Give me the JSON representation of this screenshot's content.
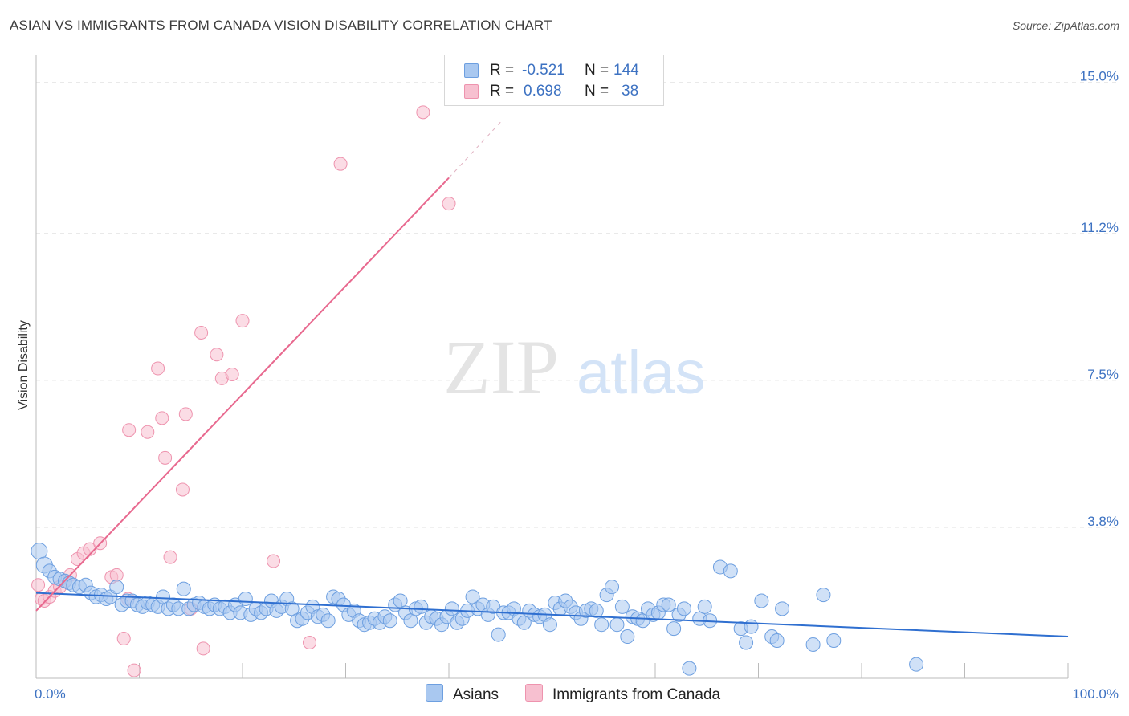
{
  "title": "ASIAN VS IMMIGRANTS FROM CANADA VISION DISABILITY CORRELATION CHART",
  "source": "Source: ZipAtlas.com",
  "watermark": {
    "zip": "ZIP",
    "atlas": "atlas"
  },
  "legend": {
    "series1": {
      "r_label": "R =",
      "r_value": "-0.521",
      "n_label": "N =",
      "n_value": "144"
    },
    "series2": {
      "r_label": "R =",
      "r_value": "0.698",
      "n_label": "N =",
      "n_value": "38"
    }
  },
  "bottom_legend": {
    "series1": "Asians",
    "series2": "Immigrants from Canada"
  },
  "colors": {
    "asians_fill": "#a9c8f0",
    "asians_stroke": "#6d9fe0",
    "asians_line": "#2f6fd0",
    "canada_fill": "#f7c0d0",
    "canada_stroke": "#ee93ae",
    "canada_line": "#e8698f",
    "tick_text": "#3d72c2",
    "grid": "#e2e2e2"
  },
  "chart_data": {
    "type": "scatter",
    "title": "ASIAN VS IMMIGRANTS FROM CANADA VISION DISABILITY CORRELATION CHART",
    "xlabel": "",
    "ylabel": "Vision Disability",
    "xlim": [
      0,
      100
    ],
    "ylim": [
      0,
      15.5
    ],
    "x_tick_labels": [
      "0.0%",
      "100.0%"
    ],
    "y_ticks": [
      3.8,
      7.5,
      11.2,
      15.0
    ],
    "y_tick_labels": [
      "3.8%",
      "7.5%",
      "11.2%",
      "15.0%"
    ],
    "grid": true,
    "series": [
      {
        "name": "Asians",
        "r": -0.521,
        "n": 144,
        "trend": {
          "x": [
            0,
            100
          ],
          "y": [
            2.15,
            1.05
          ]
        },
        "points": [
          [
            0.3,
            3.2
          ],
          [
            0.8,
            2.85
          ],
          [
            1.3,
            2.7
          ],
          [
            1.8,
            2.55
          ],
          [
            2.3,
            2.5
          ],
          [
            2.8,
            2.45
          ],
          [
            3.2,
            2.4
          ],
          [
            3.6,
            2.35
          ],
          [
            4.2,
            2.3
          ],
          [
            4.8,
            2.35
          ],
          [
            5.3,
            2.15
          ],
          [
            5.8,
            2.05
          ],
          [
            6.3,
            2.1
          ],
          [
            6.8,
            2.0
          ],
          [
            7.2,
            2.05
          ],
          [
            7.8,
            2.3
          ],
          [
            8.3,
            1.85
          ],
          [
            8.8,
            1.95
          ],
          [
            9.3,
            1.95
          ],
          [
            9.8,
            1.85
          ],
          [
            10.3,
            1.8
          ],
          [
            10.8,
            1.9
          ],
          [
            11.3,
            1.85
          ],
          [
            11.8,
            1.8
          ],
          [
            12.3,
            2.05
          ],
          [
            12.8,
            1.75
          ],
          [
            13.3,
            1.85
          ],
          [
            13.8,
            1.75
          ],
          [
            14.3,
            2.25
          ],
          [
            14.8,
            1.75
          ],
          [
            15.3,
            1.85
          ],
          [
            15.8,
            1.9
          ],
          [
            16.3,
            1.8
          ],
          [
            16.8,
            1.75
          ],
          [
            17.3,
            1.85
          ],
          [
            17.8,
            1.75
          ],
          [
            18.3,
            1.8
          ],
          [
            18.8,
            1.65
          ],
          [
            19.3,
            1.85
          ],
          [
            19.8,
            1.65
          ],
          [
            20.3,
            2.0
          ],
          [
            20.8,
            1.6
          ],
          [
            21.3,
            1.75
          ],
          [
            21.8,
            1.65
          ],
          [
            22.3,
            1.75
          ],
          [
            22.8,
            1.95
          ],
          [
            23.3,
            1.7
          ],
          [
            23.8,
            1.8
          ],
          [
            24.3,
            2.0
          ],
          [
            24.8,
            1.75
          ],
          [
            25.3,
            1.45
          ],
          [
            25.8,
            1.5
          ],
          [
            26.3,
            1.65
          ],
          [
            26.8,
            1.8
          ],
          [
            27.3,
            1.55
          ],
          [
            27.8,
            1.6
          ],
          [
            28.3,
            1.45
          ],
          [
            28.8,
            2.05
          ],
          [
            29.3,
            2.0
          ],
          [
            29.8,
            1.85
          ],
          [
            30.3,
            1.6
          ],
          [
            30.8,
            1.7
          ],
          [
            31.3,
            1.45
          ],
          [
            31.8,
            1.35
          ],
          [
            32.3,
            1.4
          ],
          [
            32.8,
            1.5
          ],
          [
            33.3,
            1.4
          ],
          [
            33.8,
            1.55
          ],
          [
            34.3,
            1.45
          ],
          [
            34.8,
            1.85
          ],
          [
            35.3,
            1.95
          ],
          [
            35.8,
            1.65
          ],
          [
            36.3,
            1.45
          ],
          [
            36.8,
            1.75
          ],
          [
            37.3,
            1.8
          ],
          [
            37.8,
            1.4
          ],
          [
            38.3,
            1.55
          ],
          [
            38.8,
            1.5
          ],
          [
            39.3,
            1.35
          ],
          [
            39.8,
            1.55
          ],
          [
            40.3,
            1.75
          ],
          [
            40.8,
            1.4
          ],
          [
            41.3,
            1.5
          ],
          [
            41.8,
            1.7
          ],
          [
            42.3,
            2.05
          ],
          [
            42.8,
            1.75
          ],
          [
            43.3,
            1.85
          ],
          [
            43.8,
            1.6
          ],
          [
            44.3,
            1.8
          ],
          [
            44.8,
            1.1
          ],
          [
            45.3,
            1.65
          ],
          [
            45.8,
            1.65
          ],
          [
            46.3,
            1.75
          ],
          [
            46.8,
            1.5
          ],
          [
            47.3,
            1.4
          ],
          [
            47.8,
            1.7
          ],
          [
            48.3,
            1.6
          ],
          [
            48.8,
            1.55
          ],
          [
            49.3,
            1.6
          ],
          [
            49.8,
            1.35
          ],
          [
            50.3,
            1.9
          ],
          [
            50.8,
            1.75
          ],
          [
            51.3,
            1.95
          ],
          [
            51.8,
            1.8
          ],
          [
            52.3,
            1.65
          ],
          [
            52.8,
            1.5
          ],
          [
            53.3,
            1.7
          ],
          [
            53.8,
            1.75
          ],
          [
            54.3,
            1.7
          ],
          [
            54.8,
            1.35
          ],
          [
            55.3,
            2.1
          ],
          [
            55.8,
            2.3
          ],
          [
            56.3,
            1.35
          ],
          [
            56.8,
            1.8
          ],
          [
            57.3,
            1.05
          ],
          [
            57.8,
            1.55
          ],
          [
            58.3,
            1.5
          ],
          [
            58.8,
            1.45
          ],
          [
            59.3,
            1.75
          ],
          [
            59.8,
            1.6
          ],
          [
            60.3,
            1.65
          ],
          [
            60.8,
            1.85
          ],
          [
            61.3,
            1.85
          ],
          [
            61.8,
            1.25
          ],
          [
            62.3,
            1.6
          ],
          [
            62.8,
            1.75
          ],
          [
            63.3,
            0.25
          ],
          [
            64.3,
            1.5
          ],
          [
            64.8,
            1.8
          ],
          [
            65.3,
            1.45
          ],
          [
            66.3,
            2.8
          ],
          [
            67.3,
            2.7
          ],
          [
            68.3,
            1.25
          ],
          [
            68.8,
            0.9
          ],
          [
            69.3,
            1.3
          ],
          [
            70.3,
            1.95
          ],
          [
            71.3,
            1.05
          ],
          [
            71.8,
            0.95
          ],
          [
            72.3,
            1.75
          ],
          [
            75.3,
            0.85
          ],
          [
            76.3,
            2.1
          ],
          [
            77.3,
            0.95
          ],
          [
            85.3,
            0.35
          ]
        ]
      },
      {
        "name": "Immigrants from Canada",
        "r": 0.698,
        "n": 38,
        "trend": {
          "x": [
            0,
            40
          ],
          "y": [
            1.7,
            12.6
          ],
          "dashed_extension": {
            "x": [
              40,
              45
            ],
            "y": [
              12.6,
              14.0
            ]
          }
        },
        "points": [
          [
            0.2,
            2.35
          ],
          [
            0.5,
            2.0
          ],
          [
            0.8,
            1.95
          ],
          [
            1.3,
            2.05
          ],
          [
            1.8,
            2.2
          ],
          [
            2.3,
            2.3
          ],
          [
            2.8,
            2.45
          ],
          [
            3.3,
            2.6
          ],
          [
            4.0,
            3.0
          ],
          [
            4.6,
            3.15
          ],
          [
            5.2,
            3.25
          ],
          [
            6.2,
            3.4
          ],
          [
            7.3,
            2.55
          ],
          [
            7.8,
            2.6
          ],
          [
            8.5,
            1.0
          ],
          [
            8.9,
            2.0
          ],
          [
            9.0,
            6.25
          ],
          [
            9.5,
            0.2
          ],
          [
            10.8,
            6.2
          ],
          [
            11.8,
            7.8
          ],
          [
            12.2,
            6.55
          ],
          [
            12.5,
            5.55
          ],
          [
            13.0,
            3.05
          ],
          [
            14.2,
            4.75
          ],
          [
            14.5,
            6.65
          ],
          [
            15.0,
            1.75
          ],
          [
            16.0,
            8.7
          ],
          [
            16.2,
            0.75
          ],
          [
            17.5,
            8.15
          ],
          [
            18.0,
            7.55
          ],
          [
            19.0,
            7.65
          ],
          [
            20.0,
            9.0
          ],
          [
            23.0,
            2.95
          ],
          [
            26.5,
            0.9
          ],
          [
            29.5,
            12.95
          ],
          [
            37.5,
            14.25
          ],
          [
            40.0,
            11.95
          ]
        ]
      }
    ]
  }
}
